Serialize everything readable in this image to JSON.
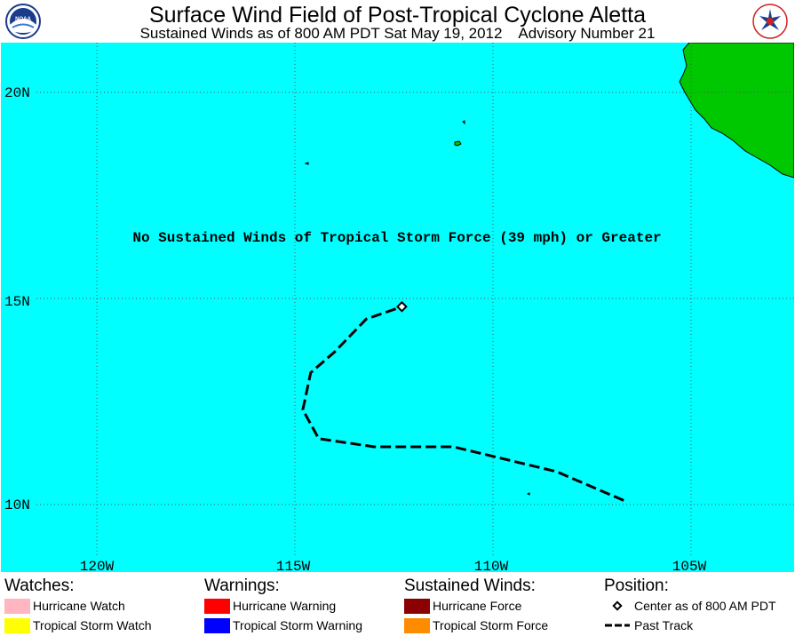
{
  "header": {
    "title": "Surface Wind Field of Post-Tropical Cyclone Aletta",
    "subtitle": "Sustained Winds as of 800 AM PDT Sat May 19, 2012    Advisory Number 21",
    "left_logo": "noaa-logo",
    "right_logo": "national-weather-service-logo",
    "right_logo_text": "NATIONAL WEATHER SERVICE"
  },
  "map": {
    "message": "No Sustained Winds of Tropical Storm Force (39 mph) or Greater",
    "lat_labels": [
      "20N",
      "15N",
      "10N"
    ],
    "lon_labels": [
      "120W",
      "115W",
      "110W",
      "105W"
    ],
    "ocean_color": "#00ffff",
    "land_color": "#00c800",
    "track": {
      "center": {
        "lat": 14.8,
        "lon": 112.3
      },
      "points": [
        {
          "lat": 10.1,
          "lon": 106.7
        },
        {
          "lat": 10.8,
          "lon": 108.4
        },
        {
          "lat": 11.4,
          "lon": 111.0
        },
        {
          "lat": 11.4,
          "lon": 113.0
        },
        {
          "lat": 11.6,
          "lon": 114.4
        },
        {
          "lat": 12.3,
          "lon": 114.8
        },
        {
          "lat": 13.2,
          "lon": 114.6
        },
        {
          "lat": 13.7,
          "lon": 114.0
        },
        {
          "lat": 14.5,
          "lon": 113.2
        },
        {
          "lat": 14.8,
          "lon": 112.3
        }
      ]
    }
  },
  "legend": {
    "watches": {
      "heading": "Watches:",
      "items": [
        {
          "label": "Hurricane Watch",
          "color": "#ffb6c1"
        },
        {
          "label": "Tropical Storm Watch",
          "color": "#ffff00"
        }
      ]
    },
    "warnings": {
      "heading": "Warnings:",
      "items": [
        {
          "label": "Hurricane Warning",
          "color": "#ff0000"
        },
        {
          "label": "Tropical Storm Warning",
          "color": "#0000ff"
        }
      ]
    },
    "winds": {
      "heading": "Sustained Winds:",
      "items": [
        {
          "label": "Hurricane Force",
          "color": "#8b0000"
        },
        {
          "label": "Tropical Storm Force",
          "color": "#ff8c00"
        }
      ]
    },
    "position": {
      "heading": "Position:",
      "center_label": "Center as of 800 AM PDT",
      "track_label": "Past Track"
    }
  }
}
